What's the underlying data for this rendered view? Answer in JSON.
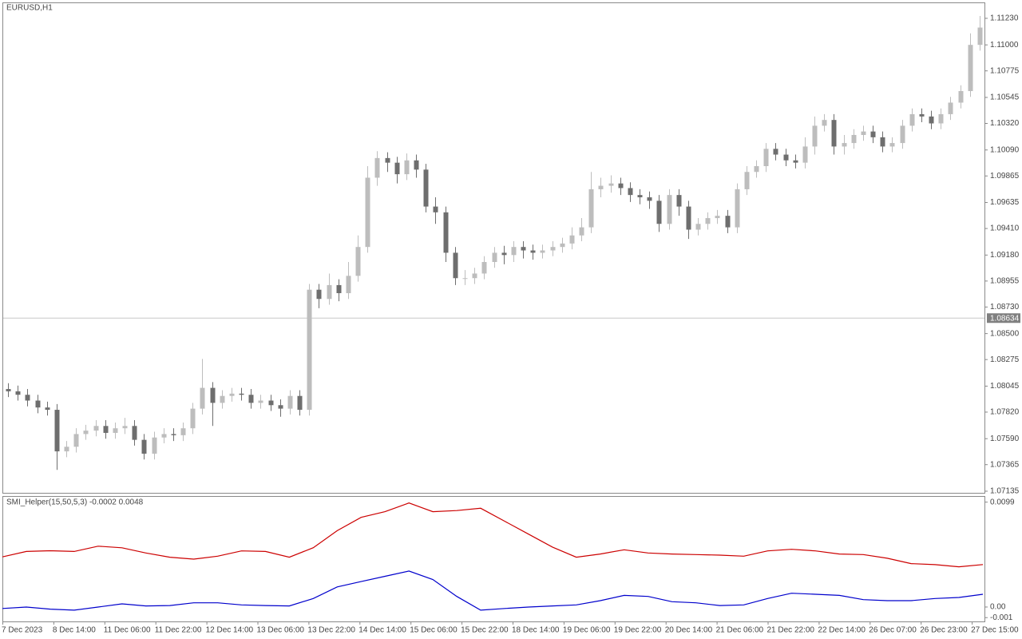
{
  "chart_data": [
    {
      "type": "candlestick",
      "title": "EURUSD,H1",
      "open": [
        1.0802,
        1.08,
        1.0797,
        1.0792,
        1.0786,
        1.0784,
        1.0748,
        1.0752,
        1.0763,
        1.0766,
        1.077,
        1.0764,
        1.0768,
        1.077,
        1.0758,
        1.0746,
        1.076,
        1.0763,
        1.0762,
        1.0768,
        1.0785,
        1.0803,
        1.079,
        1.0796,
        1.0798,
        1.0797,
        1.079,
        1.0792,
        1.0788,
        1.0785,
        1.0796,
        1.0784,
        1.0888,
        1.088,
        1.0892,
        1.0885,
        1.09,
        1.0925,
        1.0985,
        1.1002,
        1.0998,
        1.0988,
        1.1,
        1.0992,
        1.096,
        1.0955,
        1.092,
        1.0898,
        1.0898,
        1.0902,
        1.0912,
        1.092,
        1.0918,
        1.0925,
        1.0922,
        1.092,
        1.0922,
        1.0925,
        1.0928,
        1.0935,
        1.0942,
        1.0975,
        1.0978,
        1.098,
        1.0976,
        1.097,
        1.0968,
        1.0965,
        1.0945,
        1.097,
        1.096,
        1.094,
        1.0945,
        1.095,
        1.0952,
        1.0942,
        1.0975,
        1.099,
        1.0995,
        1.101,
        1.1005,
        1.1,
        1.0998,
        1.1012,
        1.103,
        1.1035,
        1.1012,
        1.1015,
        1.1022,
        1.1025,
        1.102,
        1.1012,
        1.1015,
        1.103,
        1.104,
        1.1038,
        1.1032,
        1.104,
        1.105,
        1.106,
        1.11
      ],
      "high": [
        1.0807,
        1.0805,
        1.0802,
        1.0797,
        1.0791,
        1.0789,
        1.0757,
        1.0768,
        1.0771,
        1.0775,
        1.0775,
        1.0773,
        1.0777,
        1.0775,
        1.0763,
        1.0765,
        1.0768,
        1.0768,
        1.0773,
        1.079,
        1.0828,
        1.0808,
        1.0801,
        1.0803,
        1.0803,
        1.0802,
        1.0797,
        1.0797,
        1.0793,
        1.0801,
        1.0801,
        1.0893,
        1.0893,
        1.0902,
        1.0897,
        1.0912,
        1.0935,
        1.0995,
        1.1008,
        1.1007,
        1.1003,
        1.1006,
        1.1005,
        1.0997,
        1.0968,
        1.096,
        1.0925,
        1.0905,
        1.0907,
        1.0917,
        1.0925,
        1.0926,
        1.093,
        1.093,
        1.0927,
        1.0927,
        1.093,
        1.0933,
        1.0942,
        1.095,
        1.099,
        1.0985,
        1.0987,
        1.0985,
        1.0981,
        1.0975,
        1.0973,
        1.097,
        1.0975,
        1.0975,
        1.0965,
        1.095,
        1.0955,
        1.0957,
        1.0957,
        1.098,
        1.0995,
        1.1,
        1.1015,
        1.1015,
        1.101,
        1.1005,
        1.102,
        1.1038,
        1.104,
        1.104,
        1.1022,
        1.1027,
        1.103,
        1.103,
        1.1025,
        1.102,
        1.1035,
        1.1045,
        1.1045,
        1.1043,
        1.1045,
        1.1055,
        1.1065,
        1.111,
        1.1125
      ],
      "low": [
        1.0795,
        1.0792,
        1.0787,
        1.0781,
        1.0779,
        1.0732,
        1.0743,
        1.0747,
        1.0758,
        1.0761,
        1.0759,
        1.0759,
        1.0763,
        1.0753,
        1.0741,
        1.0741,
        1.0755,
        1.0757,
        1.0757,
        1.0763,
        1.078,
        1.077,
        1.0785,
        1.0791,
        1.0792,
        1.0785,
        1.0785,
        1.0783,
        1.0778,
        1.078,
        1.0779,
        1.0779,
        1.0872,
        1.0875,
        1.0878,
        1.088,
        1.0895,
        1.092,
        1.0978,
        1.099,
        1.098,
        1.0983,
        1.0985,
        1.0955,
        1.0945,
        1.0912,
        1.0892,
        1.0892,
        1.0893,
        1.0897,
        1.0907,
        1.091,
        1.0912,
        1.0915,
        1.0914,
        1.0915,
        1.0917,
        1.092,
        1.0923,
        1.093,
        1.0937,
        1.0968,
        1.0972,
        1.097,
        1.0964,
        1.0962,
        1.0958,
        1.0938,
        1.094,
        1.0952,
        1.0932,
        1.0935,
        1.094,
        1.0945,
        1.0937,
        1.0937,
        1.097,
        1.0985,
        1.099,
        1.1,
        1.0995,
        1.0993,
        1.0993,
        1.1005,
        1.1025,
        1.1005,
        1.1005,
        1.101,
        1.1017,
        1.1015,
        1.1007,
        1.1007,
        1.101,
        1.1025,
        1.1033,
        1.1027,
        1.1027,
        1.1035,
        1.1045,
        1.1055,
        1.1095
      ],
      "close": [
        1.08,
        1.0797,
        1.0792,
        1.0786,
        1.0784,
        1.0748,
        1.0752,
        1.0763,
        1.0766,
        1.077,
        1.0764,
        1.0768,
        1.077,
        1.0758,
        1.0746,
        1.076,
        1.0763,
        1.0762,
        1.0768,
        1.0785,
        1.0803,
        1.079,
        1.0796,
        1.0798,
        1.0797,
        1.079,
        1.0792,
        1.0788,
        1.0785,
        1.0796,
        1.0784,
        1.0888,
        1.088,
        1.0892,
        1.0885,
        1.09,
        1.0925,
        1.0985,
        1.1002,
        1.0998,
        1.0988,
        1.1,
        1.0992,
        1.096,
        1.0955,
        1.092,
        1.0898,
        1.0898,
        1.0902,
        1.0912,
        1.092,
        1.0918,
        1.0925,
        1.0922,
        1.092,
        1.0922,
        1.0925,
        1.0928,
        1.0935,
        1.0942,
        1.0975,
        1.0978,
        1.098,
        1.0976,
        1.097,
        1.0968,
        1.0965,
        1.0945,
        1.097,
        1.096,
        1.094,
        1.0945,
        1.095,
        1.0952,
        1.0942,
        1.0975,
        1.099,
        1.0995,
        1.101,
        1.1005,
        1.1,
        1.0998,
        1.1012,
        1.103,
        1.1035,
        1.1012,
        1.1015,
        1.1022,
        1.1025,
        1.102,
        1.1012,
        1.1015,
        1.103,
        1.104,
        1.1038,
        1.1032,
        1.104,
        1.105,
        1.106,
        1.11,
        1.1115
      ],
      "up_color": "#bdbdbd",
      "down_color": "#6e6e6e",
      "ylim": [
        1.07121,
        1.11361
      ],
      "yticks": [
        {
          "value": 1.1123,
          "label": "1.11230"
        },
        {
          "value": 1.11,
          "label": "1.11000"
        },
        {
          "value": 1.10775,
          "label": "1.10775"
        },
        {
          "value": 1.10545,
          "label": "1.10545"
        },
        {
          "value": 1.1032,
          "label": "1.10320"
        },
        {
          "value": 1.1009,
          "label": "1.10090"
        },
        {
          "value": 1.09865,
          "label": "1.09865"
        },
        {
          "value": 1.09635,
          "label": "1.09635"
        },
        {
          "value": 1.0941,
          "label": "1.09410"
        },
        {
          "value": 1.0918,
          "label": "1.09180"
        },
        {
          "value": 1.08955,
          "label": "1.08955"
        },
        {
          "value": 1.0873,
          "label": "1.08730"
        },
        {
          "value": 1.085,
          "label": "1.08500"
        },
        {
          "value": 1.08275,
          "label": "1.08275"
        },
        {
          "value": 1.08045,
          "label": "1.08045"
        },
        {
          "value": 1.0782,
          "label": "1.07820"
        },
        {
          "value": 1.0759,
          "label": "1.07590"
        },
        {
          "value": 1.07365,
          "label": "1.07365"
        },
        {
          "value": 1.07135,
          "label": "1.07135"
        }
      ],
      "current_price": 1.08634,
      "x_labels": [
        "7 Dec 2023",
        "8 Dec 14:00",
        "11 Dec 06:00",
        "11 Dec 22:00",
        "12 Dec 14:00",
        "13 Dec 06:00",
        "13 Dec 22:00",
        "14 Dec 14:00",
        "15 Dec 06:00",
        "15 Dec 22:00",
        "18 Dec 14:00",
        "19 Dec 06:00",
        "19 Dec 22:00",
        "20 Dec 14:00",
        "21 Dec 06:00",
        "21 Dec 22:00",
        "22 Dec 14:00",
        "26 Dec 07:00",
        "26 Dec 23:00",
        "27 Dec 15:00"
      ]
    },
    {
      "type": "line",
      "title": "SMI_Helper(15,50,5,3) -0.0002 0.0048",
      "series": [
        {
          "color": "#cc0000",
          "values": [
            0.00473,
            0.00524,
            0.00531,
            0.00524,
            0.00574,
            0.00559,
            0.0051,
            0.0047,
            0.00452,
            0.0048,
            0.0053,
            0.00524,
            0.0047,
            0.0056,
            0.0072,
            0.00846,
            0.009,
            0.00982,
            0.009,
            0.0091,
            0.00932,
            0.0081,
            0.00688,
            0.00566,
            0.0047,
            0.005,
            0.0054,
            0.0051,
            0.005,
            0.00495,
            0.0049,
            0.0048,
            0.0053,
            0.00545,
            0.0053,
            0.005,
            0.00495,
            0.0046,
            0.0041,
            0.004,
            0.0038,
            0.00401
          ]
        },
        {
          "color": "#0000cc",
          "values": [
            -0.00014,
            0,
            -0.0002,
            -0.0003,
            0,
            0.0003,
            0.0001,
            0.00014,
            0.0004,
            0.0004,
            0.0002,
            0.00014,
            0.0001,
            0.0008,
            0.0019,
            0.0024,
            0.0029,
            0.0034,
            0.0026,
            0.001,
            -0.0003,
            -0.00014,
            0,
            0.0001,
            0.0002,
            0.0006,
            0.0011,
            0.001,
            0.0005,
            0.0004,
            0.00014,
            0.0002,
            0.0008,
            0.0013,
            0.0012,
            0.0011,
            0.0007,
            0.0006,
            0.0006,
            0.0008,
            0.0009,
            0.0012
          ]
        }
      ],
      "ylim": [
        -0.00136,
        0.0104
      ],
      "yticks": [
        0.0099,
        {
          "value": 0,
          "label": "0.00"
        },
        -0.001
      ]
    }
  ]
}
